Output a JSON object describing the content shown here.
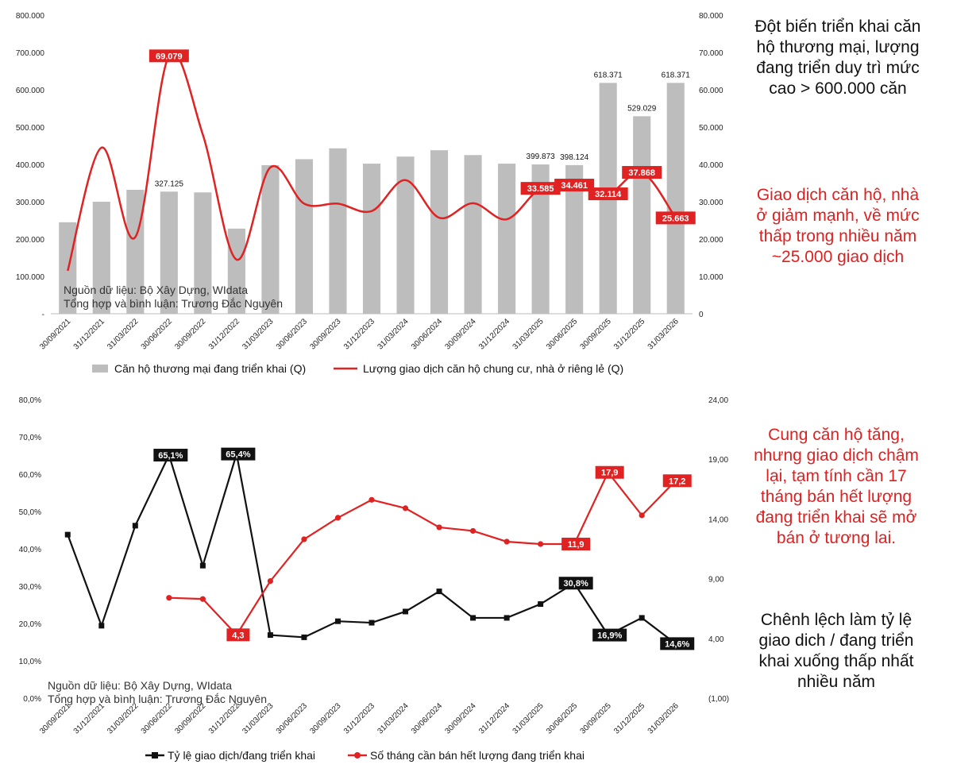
{
  "colors": {
    "bar": "#bdbdbd",
    "red": "#e02222",
    "black": "#111111",
    "axis": "#444444"
  },
  "notes": {
    "top": "Đột biến triển khai căn hộ thương mại, lượng đang triển duy trì mức cao > 600.000 căn",
    "transactions": "Giao dịch căn hộ, nhà ở giảm mạnh, về mức thấp trong nhiều năm ~25.000 giao dịch",
    "supply": "Cung căn hộ tăng, nhưng giao dịch chậm lại, tạm tính cần 17 tháng bán hết lượng đang triển khai sẽ mở bán ở tương lai.",
    "gap": "Chênh lệch làm tỷ lệ giao dich / đang triển khai xuống thấp nhất nhiều năm"
  },
  "chart_data": [
    {
      "type": "bar",
      "categories": [
        "30/09/2021",
        "31/12/2021",
        "31/03/2022",
        "30/06/2022",
        "30/09/2022",
        "31/12/2022",
        "31/03/2023",
        "30/06/2023",
        "30/09/2023",
        "31/12/2023",
        "31/03/2024",
        "30/06/2024",
        "30/09/2024",
        "31/12/2024",
        "31/03/2025",
        "30/06/2025",
        "30/09/2025",
        "31/12/2025",
        "31/03/2026"
      ],
      "source_line1": "Nguồn dữ liệu: Bộ Xây Dựng, WIdata",
      "source_line2": "Tổng hợp và bình luận: Trương Đắc Nguyên",
      "left_axis": {
        "min": 0,
        "max": 800000,
        "ticks": [
          "-",
          "100.000",
          "200.000",
          "300.000",
          "400.000",
          "500.000",
          "600.000",
          "700.000",
          "800.000"
        ]
      },
      "right_axis": {
        "min": 0,
        "max": 80000,
        "ticks": [
          "0",
          "10.000",
          "20.000",
          "30.000",
          "40.000",
          "50.000",
          "60.000",
          "70.000",
          "80.000"
        ]
      },
      "series": [
        {
          "name": "Căn hộ thương mại đang triển khai  (Q)",
          "axis": "left",
          "values": [
            245000,
            300000,
            332000,
            327125,
            325000,
            228000,
            398000,
            414000,
            443000,
            402000,
            421000,
            438000,
            425000,
            402000,
            399873,
            398124,
            618371,
            529029,
            618371
          ],
          "labels": [
            "",
            "",
            "",
            "327.125",
            "",
            "",
            "",
            "",
            "",
            "",
            "",
            "",
            "",
            "",
            "399.873",
            "398.124",
            "618.371",
            "529.029",
            "618.371"
          ]
        },
        {
          "name": "Lượng giao dịch căn hộ chung cư, nhà ở riêng lẻ  (Q)",
          "axis": "right",
          "values": [
            11500,
            44500,
            20500,
            69079,
            48000,
            14500,
            39200,
            29500,
            29500,
            27500,
            35800,
            25700,
            29600,
            25300,
            33585,
            34461,
            32114,
            37868,
            25663
          ],
          "labels": [
            "",
            "",
            "",
            "69.079",
            "",
            "",
            "",
            "",
            "",
            "",
            "",
            "",
            "",
            "",
            "33.585",
            "34.461",
            "32.114",
            "37.868",
            "25.663"
          ]
        }
      ]
    },
    {
      "type": "line",
      "categories": [
        "30/09/2021",
        "31/12/2021",
        "31/03/2022",
        "30/06/2022",
        "30/09/2022",
        "31/12/2022",
        "31/03/2023",
        "30/06/2023",
        "30/09/2023",
        "31/12/2023",
        "31/03/2024",
        "30/06/2024",
        "30/09/2024",
        "31/12/2024",
        "31/03/2025",
        "30/06/2025",
        "30/09/2025",
        "31/12/2025",
        "31/03/2026"
      ],
      "source_line1": "Nguồn dữ liệu: Bộ Xây Dựng, WIdata",
      "source_line2": "Tổng hợp và bình luận: Trương Đắc Nguyên",
      "left_axis": {
        "min": 0,
        "max": 80,
        "ticks": [
          "0,0%",
          "10,0%",
          "20,0%",
          "30,0%",
          "40,0%",
          "50,0%",
          "60,0%",
          "70,0%",
          "80,0%"
        ]
      },
      "right_axis": {
        "min": -1,
        "max": 24,
        "ticks": [
          "(1,00)",
          "4,00",
          "9,00",
          "14,00",
          "19,00",
          "24,00"
        ],
        "tick_values": [
          -1,
          4,
          9,
          14,
          19,
          24
        ]
      },
      "series": [
        {
          "name": "Tỷ lệ giao dịch/đang triển khai",
          "axis": "left",
          "values": [
            43.8,
            19.4,
            46.2,
            65.1,
            35.5,
            65.4,
            16.9,
            16.3,
            20.6,
            20.2,
            23.2,
            28.6,
            21.5,
            21.5,
            25.2,
            30.8,
            16.9,
            21.5,
            14.6
          ],
          "labels": [
            "",
            "",
            "",
            "65,1%",
            "",
            "65,4%",
            "",
            "",
            "",
            "",
            "",
            "",
            "",
            "",
            "",
            "30,8%",
            "16,9%",
            "",
            "14,6%"
          ]
        },
        {
          "name": "Số tháng cần bán hết lượng đang triển khai",
          "axis": "right",
          "values": [
            null,
            null,
            null,
            7.4,
            7.3,
            4.3,
            8.8,
            12.3,
            14.1,
            15.6,
            14.9,
            13.3,
            13.0,
            12.1,
            11.9,
            11.9,
            17.9,
            14.3,
            17.2
          ],
          "labels": [
            "",
            "",
            "",
            "",
            "",
            "4,3",
            "",
            "",
            "",
            "",
            "",
            "",
            "",
            "",
            "",
            "11,9",
            "17,9",
            "",
            "17,2"
          ]
        }
      ]
    }
  ]
}
